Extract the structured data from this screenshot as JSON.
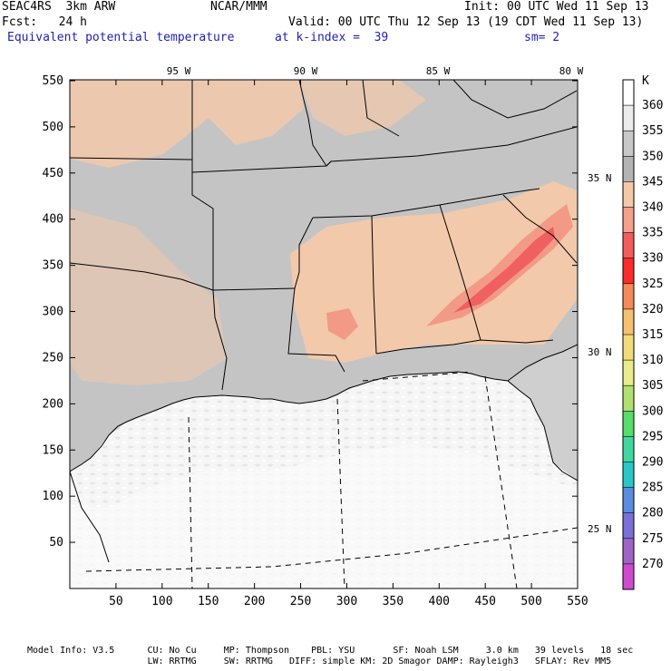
{
  "header": {
    "line1_left": "SEAC4RS  3km ARW",
    "line1_center": "NCAR/MMM",
    "line1_right": "Init: 00 UTC Wed 11 Sep 13",
    "line2_left": "Fcst:   24 h",
    "line2_right": "Valid: 00 UTC Thu 12 Sep 13 (19 CDT Wed 11 Sep 13)",
    "line3_field": "Equivalent potential temperature",
    "line3_level": "at k-index =  39",
    "line3_smooth": "sm= 2"
  },
  "axes": {
    "x_ticks": [
      "50",
      "100",
      "150",
      "200",
      "250",
      "300",
      "350",
      "400",
      "450",
      "500",
      "550"
    ],
    "y_ticks": [
      "550",
      "500",
      "450",
      "400",
      "350",
      "300",
      "250",
      "200",
      "150",
      "100",
      "50"
    ],
    "lon_labels": [
      "95 W",
      "90 W",
      "85 W",
      "80 W"
    ],
    "lat_labels": [
      "35 N",
      "30 N",
      "25 N"
    ]
  },
  "colorbar": {
    "unit": "K",
    "levels": [
      "360",
      "355",
      "350",
      "345",
      "340",
      "335",
      "330",
      "325",
      "320",
      "315",
      "310",
      "305",
      "300",
      "295",
      "290",
      "285",
      "280",
      "275",
      "270"
    ],
    "colors": [
      "#ffffff",
      "#ececec",
      "#c8c8c8",
      "#b4b4b4",
      "#f5c8a8",
      "#f4a08a",
      "#f25c5c",
      "#ff2a2a",
      "#f58a58",
      "#f5c070",
      "#f0dc7a",
      "#e8ec8a",
      "#b0e070",
      "#58dc6a",
      "#40d8a0",
      "#28c8c8",
      "#5a8ce0",
      "#7a70d8",
      "#a064c8",
      "#d04ad0"
    ]
  },
  "footer": {
    "line1": "Model Info: V3.5      CU: No Cu     MP: Thompson    PBL: YSU       SF: Noah LSM     3.0 km   39 levels   18 sec",
    "line2": "                      LW: RRTMG     SW: RRTMG   DIFF: simple KM: 2D Smagor DAMP: Rayleigh3   SFLAY: Rev MM5"
  }
}
